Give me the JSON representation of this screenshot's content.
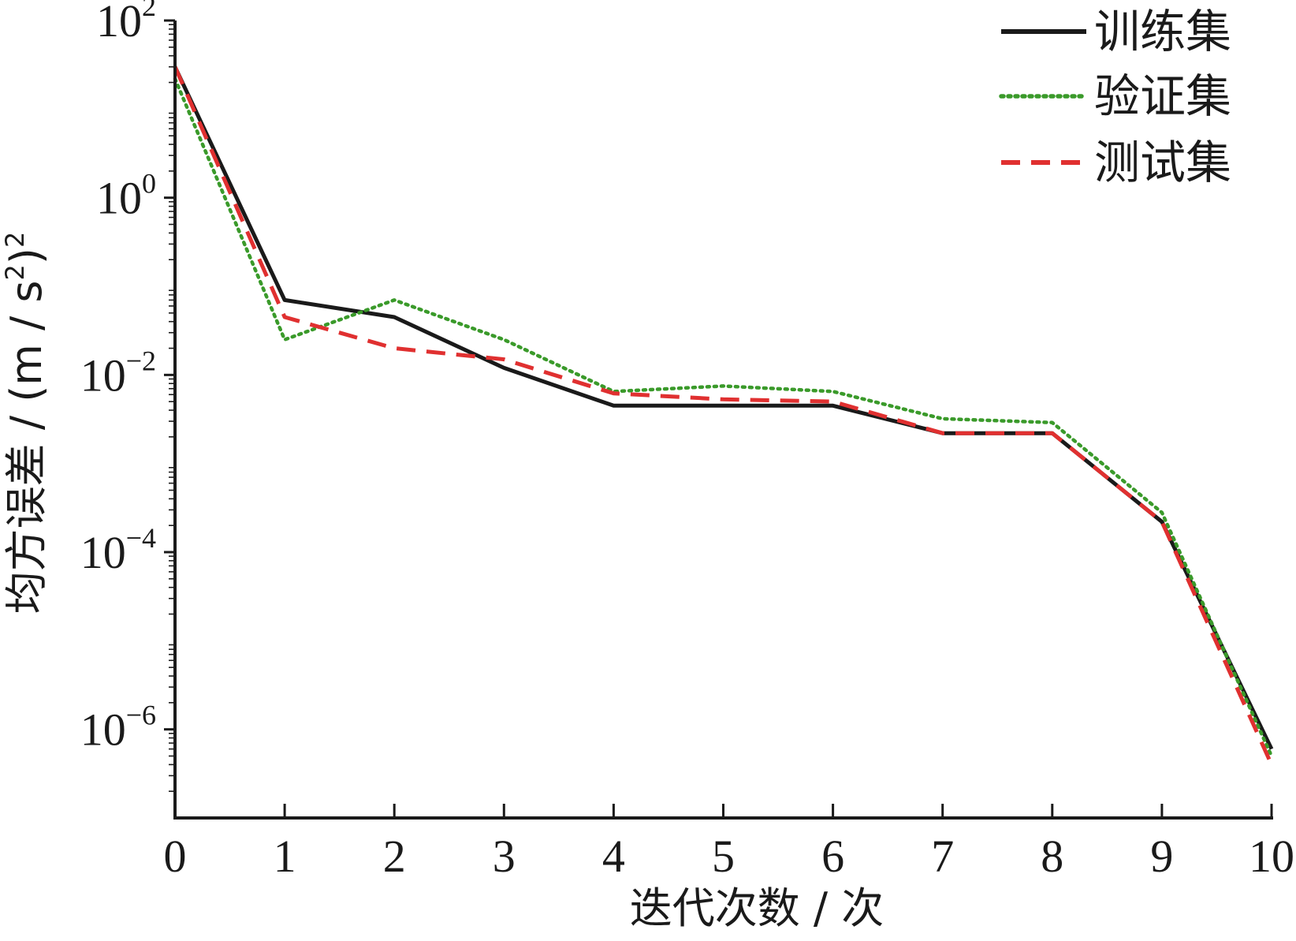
{
  "chart_data": {
    "type": "line",
    "title": "",
    "xlabel": "迭代次数 / 次",
    "ylabel": {
      "prefix": "均方误差 / (m / s",
      "mid": ")",
      "sup_inner": "2",
      "sup_outer": "2"
    },
    "x_scale": "linear",
    "y_scale": "log",
    "xlim": [
      0,
      10
    ],
    "ylim": [
      1e-07,
      100
    ],
    "x_ticks": [
      0,
      1,
      2,
      3,
      4,
      5,
      6,
      7,
      8,
      9,
      10
    ],
    "x_tick_labels": [
      "0",
      "1",
      "2",
      "3",
      "4",
      "5",
      "6",
      "7",
      "8",
      "9",
      "10"
    ],
    "y_ticks": [
      {
        "value": 100,
        "base": "10",
        "exp": "2"
      },
      {
        "value": 1,
        "base": "10",
        "exp": "0"
      },
      {
        "value": 0.01,
        "base": "10",
        "exp": "−2"
      },
      {
        "value": 0.0001,
        "base": "10",
        "exp": "−4"
      },
      {
        "value": 1e-06,
        "base": "10",
        "exp": "−6"
      }
    ],
    "legend_position": "top-right",
    "grid": false,
    "series": [
      {
        "name": "训练集",
        "color": "#1a1a1a",
        "style": "solid",
        "x": [
          0,
          1,
          2,
          3,
          4,
          5,
          6,
          7,
          8,
          9,
          10
        ],
        "y": [
          30,
          0.07,
          0.045,
          0.012,
          0.0045,
          0.0045,
          0.0045,
          0.0022,
          0.0022,
          0.00022,
          6e-07
        ]
      },
      {
        "name": "验证集",
        "color": "#3a9a2a",
        "style": "dotted",
        "x": [
          0,
          1,
          2,
          3,
          4,
          5,
          6,
          7,
          8,
          9,
          10
        ],
        "y": [
          22,
          0.025,
          0.07,
          0.025,
          0.0065,
          0.0075,
          0.0065,
          0.0032,
          0.0029,
          0.00028,
          5e-07
        ]
      },
      {
        "name": "测试集",
        "color": "#e03030",
        "style": "dashed",
        "x": [
          0,
          1,
          2,
          3,
          4,
          5,
          6,
          7,
          8,
          9,
          10
        ],
        "y": [
          30,
          0.045,
          0.02,
          0.015,
          0.0062,
          0.0053,
          0.005,
          0.0022,
          0.0022,
          0.00022,
          4e-07
        ]
      }
    ]
  }
}
